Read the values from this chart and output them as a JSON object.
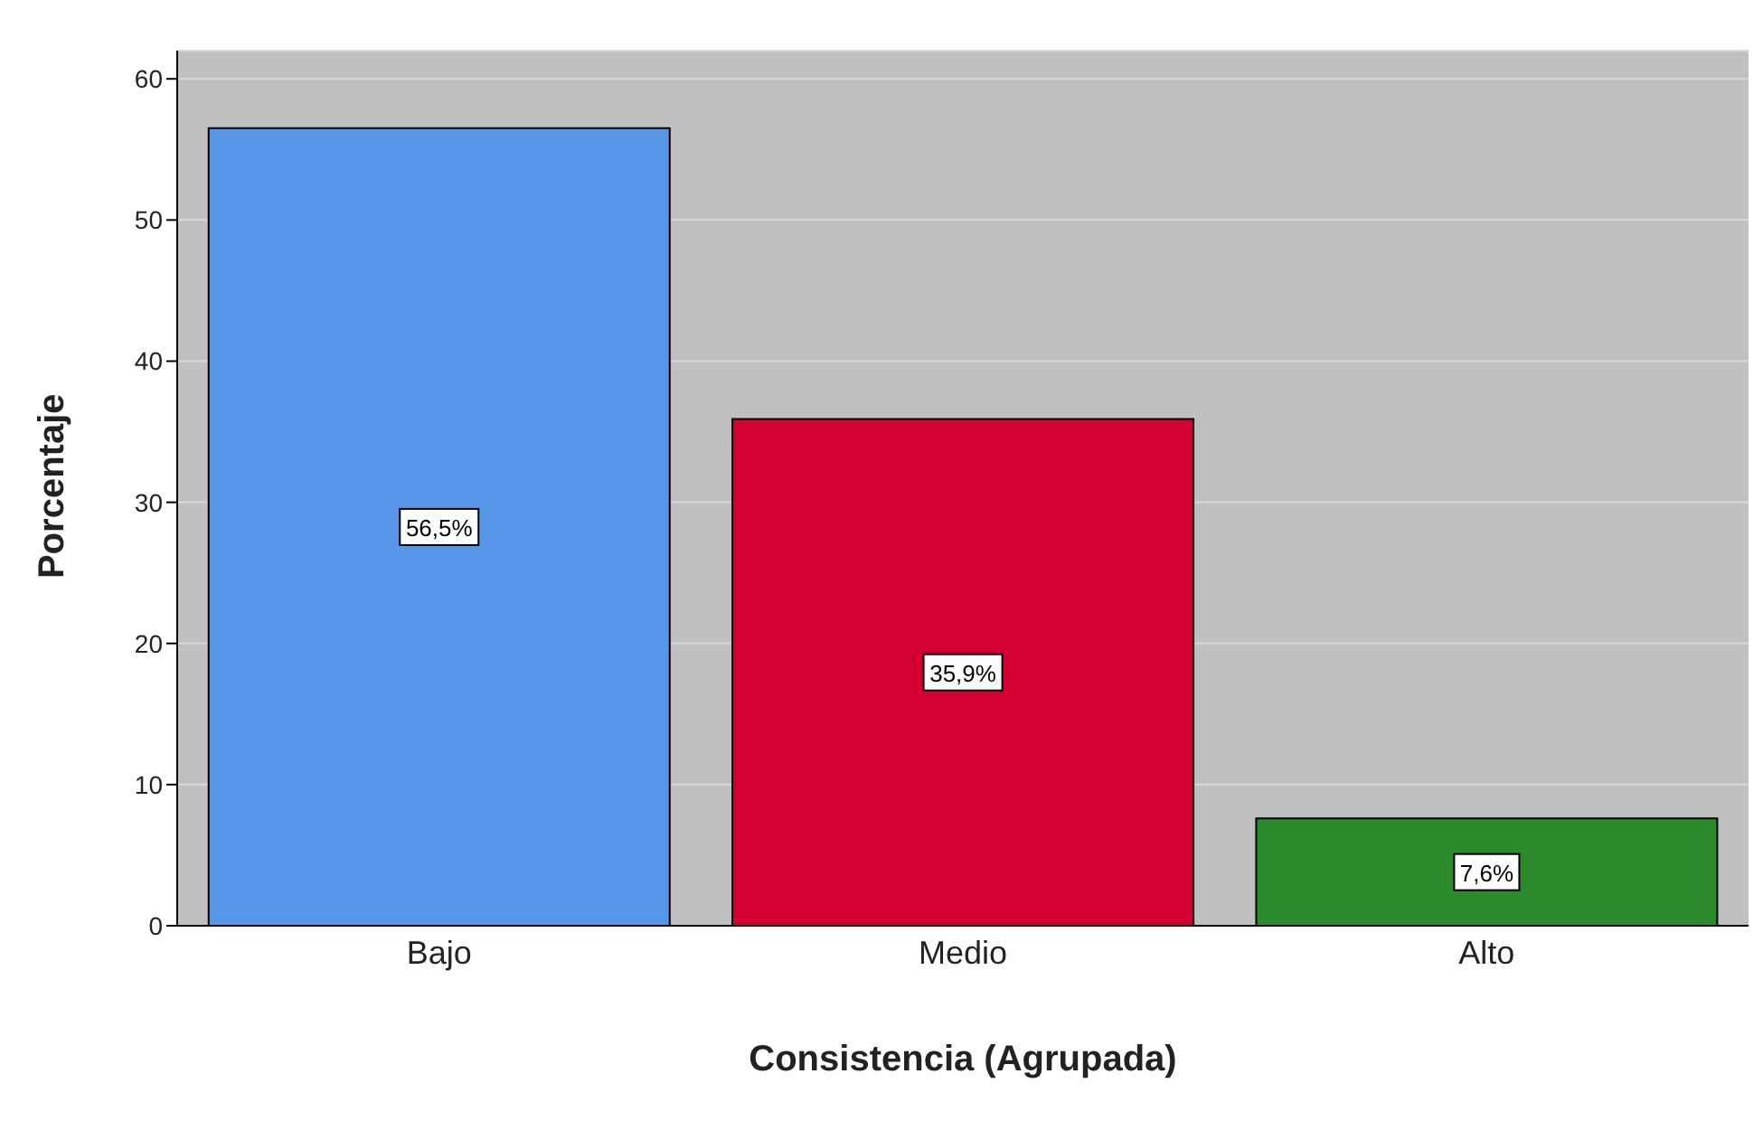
{
  "chart_data": {
    "type": "bar",
    "xlabel": "Consistencia (Agrupada)",
    "ylabel": "Porcentaje",
    "categories": [
      "Bajo",
      "Medio",
      "Alto"
    ],
    "values": [
      56.5,
      35.9,
      7.6
    ],
    "colors": [
      "#5596e6",
      "#d50032",
      "#2b8a2b"
    ],
    "value_labels": [
      "56,5%",
      "35,9%",
      "7,6%"
    ],
    "ylim": [
      0,
      62
    ],
    "yticks": [
      0,
      10,
      20,
      30,
      40,
      50,
      60
    ],
    "grid": "y"
  }
}
